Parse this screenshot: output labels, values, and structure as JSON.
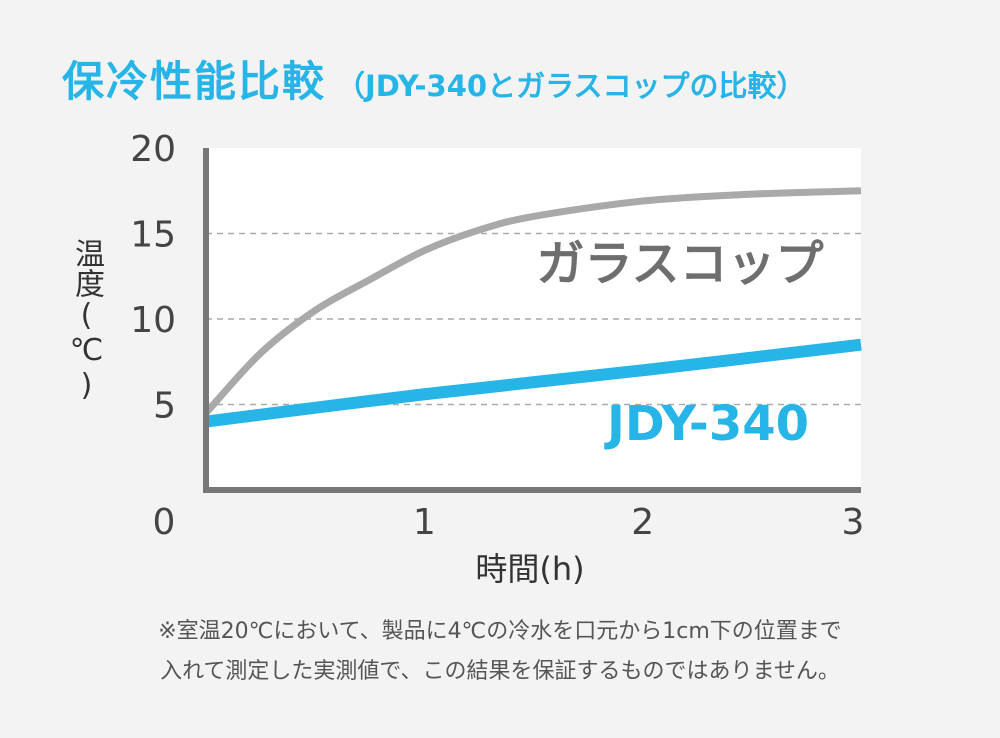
{
  "title": "保冷性能比較",
  "subtitle": "（JDY-340とガラスコップの比較）",
  "chart_data": {
    "type": "line",
    "xlabel": "時間(h)",
    "ylabel": "温度(℃)",
    "xlim": [
      0,
      3
    ],
    "ylim": [
      0,
      20
    ],
    "x_ticks": [
      "0",
      "1",
      "2",
      "3"
    ],
    "y_ticks": [
      "5",
      "10",
      "15",
      "20"
    ],
    "grid": "dashed horizontal",
    "legend": "inline labels",
    "series": [
      {
        "name": "ガラスコップ",
        "color": "#a9a9a9",
        "label_color": "#6e6e6e",
        "x": [
          0,
          0.25,
          0.5,
          0.75,
          1.0,
          1.25,
          1.5,
          2.0,
          2.5,
          3.0
        ],
        "y": [
          4.5,
          8.0,
          10.5,
          12.3,
          14.0,
          15.2,
          16.0,
          16.9,
          17.3,
          17.5
        ]
      },
      {
        "name": "JDY-340",
        "color": "#27b4e6",
        "label_color": "#27b4e6",
        "x": [
          0,
          1,
          2,
          3
        ],
        "y": [
          4.0,
          5.6,
          7.0,
          8.5
        ]
      }
    ]
  },
  "note_lines": [
    "※室温20℃において、製品に4℃の冷水を口元から1cm下の位置まで",
    "入れて測定した実測値で、この結果を保証するものではありません。"
  ]
}
